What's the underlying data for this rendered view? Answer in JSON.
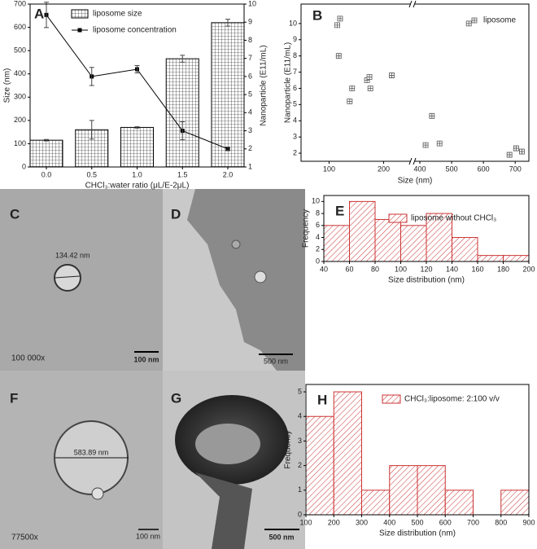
{
  "chart_data": [
    {
      "type": "bar_line",
      "label": "A",
      "categories": [
        "0.0",
        "0.5",
        "1.0",
        "1.5",
        "2.0"
      ],
      "series": [
        {
          "name": "liposome size",
          "color": "#000000",
          "values": [
            115,
            160,
            170,
            465,
            620
          ],
          "errors": [
            3,
            40,
            3,
            15,
            15
          ]
        },
        {
          "name": "liposome concentration",
          "color": "#000000",
          "axis": "y2",
          "values": [
            9.4,
            6.0,
            6.4,
            3.0,
            2.0
          ],
          "errors": [
            0.7,
            0.5,
            0.2,
            0.5,
            0.1
          ]
        }
      ],
      "ylim": [
        0,
        700
      ],
      "yticks": [
        0,
        100,
        200,
        300,
        400,
        500,
        600,
        700
      ],
      "y2lim": [
        1,
        10
      ],
      "y2ticks": [
        1,
        2,
        3,
        4,
        5,
        6,
        7,
        8,
        9,
        10
      ],
      "xlabel": "CHCl₃:water ratio (μL/E-2μL)",
      "ylabel": "Size (nm)",
      "y2label": "Nanoparticle (E11/mL)"
    },
    {
      "type": "scatter",
      "label": "B",
      "xscale": "log",
      "xlim": [
        70,
        743
      ],
      "xbreak": [
        283,
        382
      ],
      "xticks": [
        100,
        200,
        400,
        500,
        600,
        700
      ],
      "ylim": [
        1.5,
        11.2
      ],
      "yticks": [
        2,
        3,
        4,
        5,
        6,
        7,
        8,
        9,
        10
      ],
      "series": [
        {
          "name": "liposome",
          "color": "#555555",
          "x": [
            111,
            115,
            113,
            130,
            134,
            162,
            167,
            169,
            222,
            418,
            438,
            462,
            554,
            682,
            703,
            721
          ],
          "values": [
            9.9,
            10.3,
            8.0,
            5.2,
            6.0,
            6.5,
            6.7,
            6.0,
            6.8,
            2.5,
            4.3,
            2.6,
            10.0,
            1.9,
            2.3,
            2.1
          ]
        }
      ],
      "xlabel": "Size (nm)",
      "ylabel": "Nanoparticle (E11/mL)"
    },
    {
      "type": "histogram",
      "label": "E",
      "name": "liposome without CHCl₃",
      "color": "#cc3333",
      "bins": [
        40,
        60,
        80,
        100,
        120,
        140,
        160,
        180,
        200
      ],
      "values": [
        6,
        10,
        7,
        6,
        8,
        4,
        1,
        1
      ],
      "xlim": [
        40,
        200
      ],
      "xticks": [
        40,
        60,
        80,
        100,
        120,
        140,
        160,
        180,
        200
      ],
      "ylim": [
        0,
        11
      ],
      "yticks": [
        0,
        2,
        4,
        6,
        8,
        10
      ],
      "xlabel": "Size distribution (nm)",
      "ylabel": "Frequency"
    },
    {
      "type": "histogram",
      "label": "H",
      "name": "CHCl₃:liposome: 2:100 v/v",
      "color": "#cc3333",
      "bins": [
        100,
        200,
        300,
        400,
        500,
        600,
        700,
        800,
        900
      ],
      "values": [
        4,
        5,
        1,
        2,
        2,
        1,
        0,
        1
      ],
      "xlim": [
        100,
        900
      ],
      "xticks": [
        100,
        200,
        300,
        400,
        500,
        600,
        700,
        800,
        900
      ],
      "ylim": [
        0,
        5.3
      ],
      "yticks": [
        0,
        1,
        2,
        3,
        4,
        5
      ],
      "xlabel": "Size distribution (nm)",
      "ylabel": "Frequency"
    }
  ],
  "micrographs": [
    {
      "label": "C",
      "annotation": "134.42 nm",
      "magnification": "100 000x",
      "scale_bar": "100 nm"
    },
    {
      "label": "D",
      "scale_bar": "500 nm"
    },
    {
      "label": "F",
      "annotation": "583.89 nm",
      "magnification": "77500x",
      "scale_bar": "100 nm"
    },
    {
      "label": "G",
      "scale_bar": "500 nm"
    }
  ]
}
